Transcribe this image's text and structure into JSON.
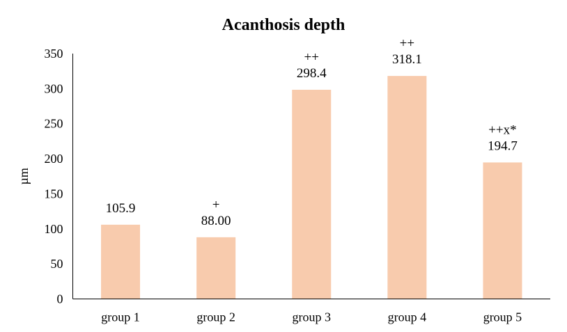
{
  "chart_data": {
    "type": "bar",
    "title": "Acanthosis depth",
    "xlabel": "",
    "ylabel": "µm",
    "categories": [
      "group 1",
      "group 2",
      "group 3",
      "group 4",
      "group 5"
    ],
    "values": [
      105.9,
      88.0,
      298.4,
      318.1,
      194.7
    ],
    "value_labels": [
      "105.9",
      "88.00",
      "298.4",
      "318.1",
      "194.7"
    ],
    "significance_labels": [
      "",
      "+",
      "++",
      "++",
      "++x*"
    ],
    "ylim": [
      0,
      350
    ],
    "yticks": [
      "0",
      "50",
      "100",
      "150",
      "200",
      "250",
      "300",
      "350"
    ],
    "grid": false,
    "legend": "none",
    "bar_color": "#F8CBAD"
  }
}
